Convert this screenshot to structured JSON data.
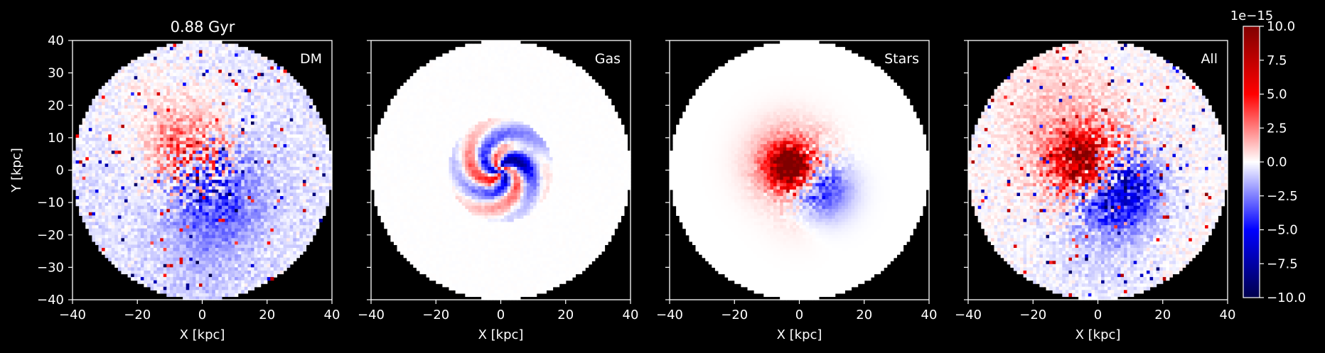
{
  "figure": {
    "title": "0.88 Gyr",
    "background": "#000000",
    "foreground": "#ffffff"
  },
  "chart_data": [
    {
      "type": "heatmap",
      "panel_label": "DM",
      "xlabel": "X [kpc]",
      "ylabel": "Y [kpc]",
      "xlim": [
        -40,
        40
      ],
      "ylim": [
        -40,
        40
      ],
      "xticks": [
        -40,
        -20,
        0,
        20,
        40
      ],
      "yticks": [
        -40,
        -30,
        -20,
        -10,
        0,
        10,
        20,
        30,
        40
      ],
      "field": "dm",
      "mask": "circle radius 40 kpc"
    },
    {
      "type": "heatmap",
      "panel_label": "Gas",
      "xlabel": "X [kpc]",
      "xlim": [
        -40,
        40
      ],
      "ylim": [
        -40,
        40
      ],
      "xticks": [
        -40,
        -20,
        0,
        20,
        40
      ],
      "field": "gas",
      "mask": "circle radius 40 kpc"
    },
    {
      "type": "heatmap",
      "panel_label": "Stars",
      "xlabel": "X [kpc]",
      "xlim": [
        -40,
        40
      ],
      "ylim": [
        -40,
        40
      ],
      "xticks": [
        -40,
        -20,
        0,
        20,
        40
      ],
      "field": "stars",
      "mask": "circle radius 40 kpc"
    },
    {
      "type": "heatmap",
      "panel_label": "All",
      "xlabel": "X [kpc]",
      "xlim": [
        -40,
        40
      ],
      "ylim": [
        -40,
        40
      ],
      "xticks": [
        -40,
        -20,
        0,
        20,
        40
      ],
      "field": "all",
      "mask": "circle radius 40 kpc"
    }
  ],
  "colorbar": {
    "colormap": "seismic",
    "range": [
      -10.0,
      10.0
    ],
    "exponent_label": "1e−15",
    "ticks": [
      10.0,
      7.5,
      5.0,
      2.5,
      0.0,
      -2.5,
      -5.0,
      -7.5,
      -10.0
    ],
    "tick_labels": [
      "10.0",
      "7.5",
      "5.0",
      "2.5",
      "0.0",
      "−2.5",
      "−5.0",
      "−7.5",
      "−10.0"
    ],
    "stops": [
      "#00004c",
      "#0000ff",
      "#ffffff",
      "#ff0000",
      "#800000"
    ]
  }
}
